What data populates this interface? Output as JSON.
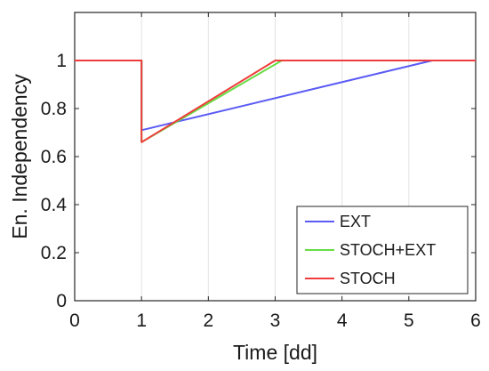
{
  "chart_data": {
    "type": "line",
    "xlabel": "Time [dd]",
    "ylabel": "En. Independency",
    "xlim": [
      0,
      6
    ],
    "ylim": [
      0,
      1.2
    ],
    "xticks": [
      0,
      1,
      2,
      3,
      4,
      5,
      6
    ],
    "yticks": [
      0,
      0.2,
      0.4,
      0.6,
      0.8,
      1
    ],
    "xtick_labels": [
      "0",
      "1",
      "2",
      "3",
      "4",
      "5",
      "6"
    ],
    "ytick_labels": [
      "0",
      "0.2",
      "0.4",
      "0.6",
      "0.8",
      "1"
    ],
    "grid": "x-only",
    "legend_position": "bottom-right",
    "series": [
      {
        "name": "EXT",
        "color": "#5b5bf5",
        "x": [
          0,
          1,
          1,
          5.35,
          6
        ],
        "y": [
          1,
          1,
          0.71,
          1,
          1
        ]
      },
      {
        "name": "STOCH+EXT",
        "color": "#66dd44",
        "x": [
          0,
          1,
          1,
          3.1,
          6
        ],
        "y": [
          1,
          1,
          0.66,
          1,
          1
        ]
      },
      {
        "name": "STOCH",
        "color": "#f03c3c",
        "x": [
          0,
          1,
          1,
          3.0,
          6
        ],
        "y": [
          1,
          1,
          0.66,
          1,
          1
        ]
      }
    ]
  }
}
